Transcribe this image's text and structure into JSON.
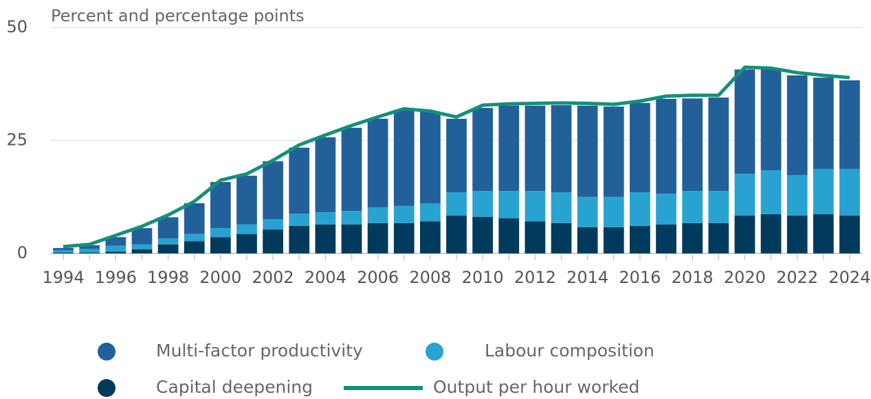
{
  "chart_data": {
    "type": "bar",
    "title": "Percent and percentage points",
    "x": [
      1994,
      1995,
      1996,
      1997,
      1998,
      1999,
      2000,
      2001,
      2002,
      2003,
      2004,
      2005,
      2006,
      2007,
      2008,
      2009,
      2010,
      2011,
      2012,
      2013,
      2014,
      2015,
      2016,
      2017,
      2018,
      2019,
      2020,
      2021,
      2022,
      2023,
      2024
    ],
    "xlim": [
      1993.5,
      2024.5
    ],
    "xticks": [
      1994,
      1996,
      1998,
      2000,
      2002,
      2004,
      2006,
      2008,
      2010,
      2012,
      2014,
      2016,
      2018,
      2020,
      2022,
      2024
    ],
    "ylim": [
      0,
      50
    ],
    "yticks": [
      0,
      25,
      50
    ],
    "grid": true,
    "series": [
      {
        "name": "Multi-factor productivity",
        "color": "#22609a",
        "values": [
          0.5,
          0.8,
          1.9,
          3.6,
          4.7,
          6.8,
          10.2,
          10.8,
          12.8,
          14.6,
          16.6,
          18.4,
          19.6,
          21.3,
          20.2,
          16.3,
          18.4,
          18.9,
          18.9,
          19.3,
          20.2,
          20.0,
          19.8,
          21.0,
          20.5,
          20.7,
          23.1,
          22.3,
          22.1,
          20.2,
          19.6
        ]
      },
      {
        "name": "Labour composition",
        "color": "#28a3d1",
        "values": [
          0.5,
          0.8,
          1.3,
          1.1,
          1.3,
          1.6,
          2.0,
          2.1,
          2.3,
          2.7,
          2.7,
          3.0,
          3.5,
          3.8,
          4.0,
          5.1,
          5.7,
          6.0,
          6.7,
          6.8,
          6.7,
          6.7,
          7.4,
          6.8,
          7.1,
          7.1,
          9.2,
          9.7,
          8.9,
          10.0,
          10.3
        ]
      },
      {
        "name": "Capital deepening",
        "color": "#003a5c",
        "values": [
          0.2,
          0.2,
          0.4,
          0.9,
          2.0,
          2.7,
          3.6,
          4.3,
          5.3,
          6.1,
          6.4,
          6.4,
          6.7,
          6.7,
          7.1,
          8.4,
          8.1,
          7.8,
          7.1,
          6.7,
          5.8,
          5.8,
          6.1,
          6.4,
          6.7,
          6.7,
          8.4,
          8.7,
          8.4,
          8.7,
          8.4
        ]
      },
      {
        "name": "Output per hour worked",
        "type": "line",
        "color": "#14907a",
        "values": [
          1.5,
          2.0,
          4.0,
          6.0,
          8.5,
          11.5,
          16.2,
          17.6,
          20.6,
          24.0,
          26.2,
          28.3,
          30.2,
          32.0,
          31.5,
          30.2,
          32.8,
          33.1,
          33.2,
          33.3,
          33.2,
          33.0,
          33.7,
          34.8,
          35.0,
          35.0,
          41.2,
          41.0,
          40.0,
          39.4,
          38.9
        ]
      }
    ]
  }
}
